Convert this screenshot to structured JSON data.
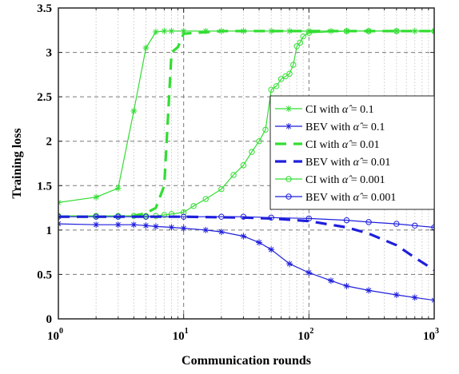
{
  "chart_data": {
    "type": "line",
    "xlabel": "Communication rounds",
    "ylabel": "Training loss",
    "xscale": "log",
    "xlim": [
      1,
      1000
    ],
    "ylim": [
      0,
      3.5
    ],
    "grid": true,
    "legend_position": "center-right",
    "x_ticks": [
      {
        "base": "10",
        "exp": "0",
        "value": 1
      },
      {
        "base": "10",
        "exp": "1",
        "value": 10
      },
      {
        "base": "10",
        "exp": "2",
        "value": 100
      },
      {
        "base": "10",
        "exp": "3",
        "value": 1000
      }
    ],
    "y_ticks": [
      "0",
      "0.5",
      "1",
      "1.5",
      "2",
      "2.5",
      "3",
      "3.5"
    ],
    "series": [
      {
        "name": "CI with α̂ = 0.1",
        "legend_prefix": "CI with ",
        "legend_value": "0.1",
        "color": "#33dd33",
        "style": "solid",
        "marker": "star",
        "x": [
          1,
          2,
          3,
          4,
          5,
          6,
          7,
          8,
          10,
          15,
          20,
          30,
          50,
          70,
          100,
          150,
          200,
          300,
          500,
          700,
          1000
        ],
        "y": [
          1.31,
          1.37,
          1.47,
          2.34,
          3.05,
          3.23,
          3.24,
          3.24,
          3.24,
          3.24,
          3.24,
          3.24,
          3.24,
          3.24,
          3.24,
          3.24,
          3.24,
          3.24,
          3.24,
          3.24,
          3.24
        ]
      },
      {
        "name": "BEV with α̂ = 0.1",
        "legend_prefix": "BEV with ",
        "legend_value": "0.1",
        "color": "#1f1fdd",
        "style": "solid",
        "marker": "star",
        "x": [
          1,
          2,
          3,
          4,
          5,
          6,
          8,
          10,
          15,
          20,
          30,
          40,
          50,
          70,
          100,
          150,
          200,
          300,
          500,
          700,
          1000
        ],
        "y": [
          1.07,
          1.06,
          1.06,
          1.06,
          1.05,
          1.04,
          1.03,
          1.02,
          1.0,
          0.98,
          0.93,
          0.86,
          0.78,
          0.62,
          0.52,
          0.43,
          0.37,
          0.32,
          0.27,
          0.24,
          0.21
        ]
      },
      {
        "name": "CI with α̂ = 0.01",
        "legend_prefix": "CI with ",
        "legend_value": "0.01",
        "color": "#33dd33",
        "style": "dashed",
        "marker": "none",
        "x": [
          1,
          2,
          3,
          4,
          5,
          6,
          7,
          8,
          9,
          10,
          20,
          50,
          100,
          300,
          1000
        ],
        "y": [
          1.15,
          1.15,
          1.15,
          1.16,
          1.19,
          1.25,
          1.5,
          3.0,
          3.06,
          3.21,
          3.24,
          3.24,
          3.24,
          3.24,
          3.24
        ]
      },
      {
        "name": "BEV with α̂ = 0.01",
        "legend_prefix": "BEV with ",
        "legend_value": "0.01",
        "color": "#1f1fdd",
        "style": "dashed",
        "marker": "none",
        "x": [
          1,
          3,
          10,
          30,
          50,
          100,
          200,
          300,
          500,
          700,
          1000
        ],
        "y": [
          1.15,
          1.15,
          1.15,
          1.14,
          1.13,
          1.1,
          1.03,
          0.96,
          0.83,
          0.69,
          0.55
        ]
      },
      {
        "name": "CI with α̂ = 0.001",
        "legend_prefix": "CI with ",
        "legend_value": "0.001",
        "color": "#33dd33",
        "style": "solid",
        "marker": "circle",
        "x": [
          1,
          2,
          3,
          4,
          5,
          6,
          7,
          8,
          10,
          12,
          15,
          20,
          25,
          30,
          35,
          40,
          45,
          50,
          55,
          60,
          65,
          70,
          75,
          80,
          85,
          90,
          100,
          200,
          300,
          500,
          1000
        ],
        "y": [
          1.16,
          1.16,
          1.16,
          1.16,
          1.16,
          1.16,
          1.17,
          1.18,
          1.2,
          1.27,
          1.35,
          1.46,
          1.62,
          1.73,
          1.88,
          2.0,
          2.13,
          2.58,
          2.62,
          2.7,
          2.73,
          2.76,
          2.86,
          3.07,
          3.11,
          3.18,
          3.22,
          3.24,
          3.24,
          3.24,
          3.24
        ]
      },
      {
        "name": "BEV with α̂ = 0.001",
        "legend_prefix": "BEV with ",
        "legend_value": "0.001",
        "color": "#1f1fdd",
        "style": "solid",
        "marker": "circle",
        "x": [
          1,
          2,
          3,
          5,
          10,
          20,
          30,
          50,
          100,
          200,
          300,
          500,
          700,
          1000
        ],
        "y": [
          1.15,
          1.15,
          1.15,
          1.15,
          1.15,
          1.15,
          1.15,
          1.14,
          1.13,
          1.11,
          1.09,
          1.07,
          1.05,
          1.03
        ]
      }
    ]
  }
}
